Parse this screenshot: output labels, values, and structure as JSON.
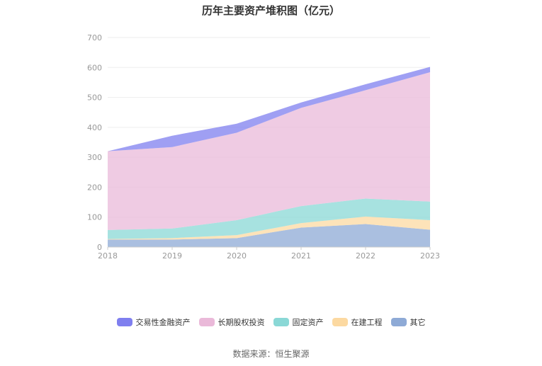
{
  "chart_data": {
    "type": "area",
    "title": "历年主要资产堆积图（亿元）",
    "categories": [
      "2018",
      "2019",
      "2020",
      "2021",
      "2022",
      "2023"
    ],
    "ylim": [
      0,
      700
    ],
    "yticks": [
      "0",
      "100",
      "200",
      "300",
      "400",
      "500",
      "600",
      "700"
    ],
    "series": [
      {
        "name": "其它",
        "color": "#8eaad6",
        "values": [
          25,
          25,
          30,
          65,
          77,
          58
        ]
      },
      {
        "name": "在建工程",
        "color": "#fcd9a1",
        "values": [
          2,
          5,
          10,
          15,
          25,
          32
        ]
      },
      {
        "name": "固定资产",
        "color": "#8ad8d6",
        "values": [
          30,
          32,
          50,
          57,
          60,
          62
        ]
      },
      {
        "name": "长期股权投资",
        "color": "#eab9d9",
        "values": [
          263,
          272,
          292,
          328,
          362,
          432
        ]
      },
      {
        "name": "交易性金融资产",
        "color": "#7f7fef",
        "values": [
          0,
          38,
          30,
          18,
          20,
          18
        ]
      }
    ],
    "stacked": true,
    "grid": true,
    "legend_position": "bottom"
  },
  "footer": {
    "source": "数据来源：恒生聚源"
  }
}
